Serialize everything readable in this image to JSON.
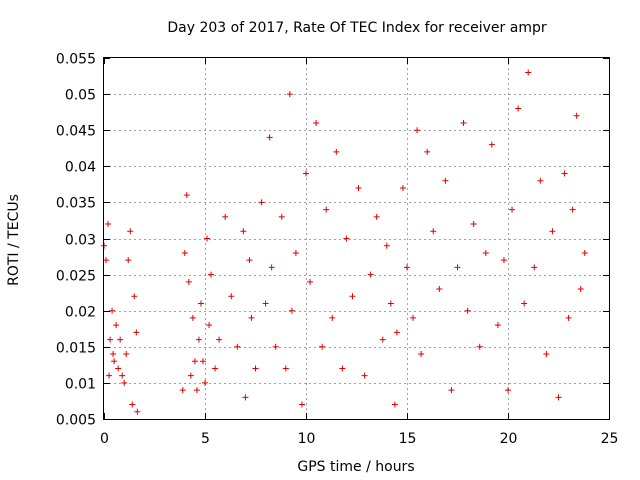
{
  "chart_data": {
    "type": "scatter",
    "title": "Day 203 of 2017, Rate Of TEC Index for receiver ampr",
    "xlabel": "GPS time / hours",
    "ylabel": "ROTI / TECUs",
    "xlim": [
      0,
      25
    ],
    "ylim": [
      0.005,
      0.055
    ],
    "x_ticks": [
      "0",
      "5",
      "10",
      "15",
      "20",
      "25"
    ],
    "y_ticks": [
      "0.005",
      "0.01",
      "0.015",
      "0.02",
      "0.025",
      "0.03",
      "0.035",
      "0.04",
      "0.045",
      "0.05",
      "0.055"
    ],
    "grid": true,
    "marker": "+",
    "color": "#e00000",
    "series": [
      {
        "x": [
          0.0,
          0.1,
          0.2,
          0.25,
          0.3,
          0.4,
          0.45,
          0.5,
          0.6,
          0.7,
          0.8,
          0.9,
          1.0,
          1.1,
          1.2,
          1.3,
          1.4,
          1.5,
          1.6,
          1.65,
          3.9,
          4.0,
          4.1,
          4.2,
          4.3,
          4.4,
          4.5,
          4.6,
          4.7,
          4.8,
          4.9,
          5.0,
          5.1,
          5.2,
          5.3,
          5.5,
          5.7,
          6.0,
          6.3,
          6.6,
          6.9,
          7.0,
          7.2,
          7.3,
          7.5,
          7.8,
          8.0,
          8.2,
          8.3,
          8.5,
          8.8,
          9.0,
          9.2,
          9.3,
          9.5,
          9.8,
          10.0,
          10.2,
          10.5,
          10.8,
          11.0,
          11.3,
          11.5,
          11.8,
          12.0,
          12.3,
          12.6,
          12.9,
          13.2,
          13.5,
          13.8,
          14.0,
          14.2,
          14.4,
          14.5,
          14.8,
          15.0,
          15.3,
          15.5,
          15.7,
          16.0,
          16.3,
          16.6,
          16.9,
          17.2,
          17.5,
          17.8,
          18.0,
          18.3,
          18.6,
          18.9,
          19.2,
          19.5,
          19.8,
          20.0,
          20.2,
          20.5,
          20.8,
          21.0,
          21.3,
          21.6,
          21.9,
          22.2,
          22.5,
          22.8,
          23.0,
          23.2,
          23.4,
          23.6,
          23.8
        ],
        "y": [
          0.029,
          0.027,
          0.032,
          0.011,
          0.016,
          0.02,
          0.014,
          0.013,
          0.018,
          0.012,
          0.016,
          0.011,
          0.01,
          0.014,
          0.027,
          0.031,
          0.007,
          0.022,
          0.017,
          0.006,
          0.009,
          0.028,
          0.036,
          0.024,
          0.011,
          0.019,
          0.013,
          0.009,
          0.016,
          0.021,
          0.013,
          0.01,
          0.03,
          0.018,
          0.025,
          0.012,
          0.016,
          0.033,
          0.022,
          0.015,
          0.031,
          0.008,
          0.027,
          0.019,
          0.012,
          0.035,
          0.021,
          0.044,
          0.026,
          0.015,
          0.033,
          0.012,
          0.05,
          0.02,
          0.028,
          0.007,
          0.039,
          0.024,
          0.046,
          0.015,
          0.034,
          0.019,
          0.042,
          0.012,
          0.03,
          0.022,
          0.037,
          0.011,
          0.025,
          0.033,
          0.016,
          0.029,
          0.021,
          0.007,
          0.017,
          0.037,
          0.026,
          0.019,
          0.045,
          0.014,
          0.042,
          0.031,
          0.023,
          0.038,
          0.009,
          0.026,
          0.046,
          0.02,
          0.032,
          0.015,
          0.028,
          0.043,
          0.018,
          0.027,
          0.009,
          0.034,
          0.048,
          0.021,
          0.053,
          0.026,
          0.038,
          0.014,
          0.031,
          0.008,
          0.039,
          0.019,
          0.034,
          0.047,
          0.023,
          0.028
        ]
      }
    ]
  }
}
